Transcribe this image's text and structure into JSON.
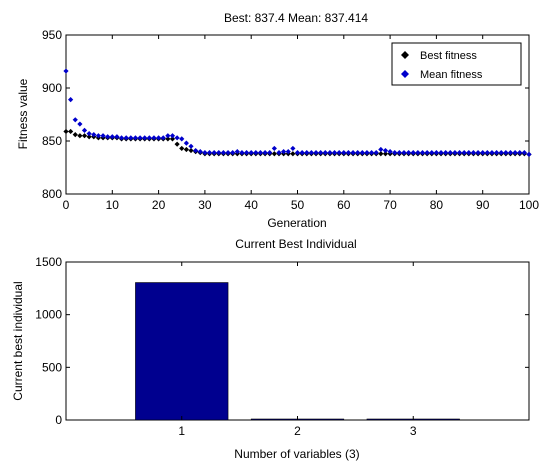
{
  "chart_data": [
    {
      "type": "scatter",
      "title": "Best: 837.4 Mean: 837.414",
      "xlabel": "Generation",
      "ylabel": "Fitness value",
      "xlim": [
        0,
        100
      ],
      "ylim": [
        800,
        950
      ],
      "xticks": [
        "0",
        "10",
        "20",
        "30",
        "40",
        "50",
        "60",
        "70",
        "80",
        "90",
        "100"
      ],
      "yticks": [
        "800",
        "850",
        "900",
        "950"
      ],
      "legend_position": "top-right",
      "grid": false,
      "series": [
        {
          "name": "Best fitness",
          "color": "#000000",
          "points": [
            [
              0,
              859
            ],
            [
              1,
              859
            ],
            [
              2,
              856
            ],
            [
              3,
              855
            ],
            [
              4,
              855
            ],
            [
              5,
              854
            ],
            [
              6,
              854
            ],
            [
              7,
              853
            ],
            [
              8,
              853
            ],
            [
              9,
              853
            ],
            [
              10,
              853
            ],
            [
              11,
              853
            ],
            [
              12,
              852
            ],
            [
              13,
              852
            ],
            [
              14,
              852
            ],
            [
              15,
              852
            ],
            [
              16,
              852
            ],
            [
              17,
              852
            ],
            [
              18,
              852
            ],
            [
              19,
              852
            ],
            [
              20,
              852
            ],
            [
              21,
              852
            ],
            [
              22,
              852
            ],
            [
              23,
              852
            ],
            [
              24,
              847
            ],
            [
              25,
              843
            ],
            [
              26,
              842
            ],
            [
              27,
              841
            ],
            [
              28,
              840
            ],
            [
              29,
              839
            ],
            [
              30,
              838
            ],
            [
              31,
              838
            ],
            [
              32,
              838
            ],
            [
              33,
              838
            ],
            [
              34,
              838
            ],
            [
              35,
              838
            ],
            [
              36,
              838
            ],
            [
              37,
              838
            ],
            [
              38,
              838
            ],
            [
              39,
              838
            ],
            [
              40,
              838
            ],
            [
              41,
              838
            ],
            [
              42,
              838
            ],
            [
              43,
              838
            ],
            [
              44,
              838
            ],
            [
              45,
              838
            ],
            [
              46,
              838
            ],
            [
              47,
              838
            ],
            [
              48,
              838
            ],
            [
              49,
              838
            ],
            [
              50,
              838
            ],
            [
              51,
              838
            ],
            [
              52,
              838
            ],
            [
              53,
              838
            ],
            [
              54,
              838
            ],
            [
              55,
              838
            ],
            [
              56,
              838
            ],
            [
              57,
              838
            ],
            [
              58,
              838
            ],
            [
              59,
              838
            ],
            [
              60,
              838
            ],
            [
              61,
              838
            ],
            [
              62,
              838
            ],
            [
              63,
              838
            ],
            [
              64,
              838
            ],
            [
              65,
              838
            ],
            [
              66,
              838
            ],
            [
              67,
              838
            ],
            [
              68,
              838
            ],
            [
              69,
              838
            ],
            [
              70,
              838
            ],
            [
              71,
              838
            ],
            [
              72,
              838
            ],
            [
              73,
              838
            ],
            [
              74,
              838
            ],
            [
              75,
              838
            ],
            [
              76,
              838
            ],
            [
              77,
              838
            ],
            [
              78,
              838
            ],
            [
              79,
              838
            ],
            [
              80,
              838
            ],
            [
              81,
              838
            ],
            [
              82,
              838
            ],
            [
              83,
              838
            ],
            [
              84,
              838
            ],
            [
              85,
              838
            ],
            [
              86,
              838
            ],
            [
              87,
              838
            ],
            [
              88,
              838
            ],
            [
              89,
              838
            ],
            [
              90,
              838
            ],
            [
              91,
              838
            ],
            [
              92,
              838
            ],
            [
              93,
              838
            ],
            [
              94,
              838
            ],
            [
              95,
              838
            ],
            [
              96,
              838
            ],
            [
              97,
              838
            ],
            [
              98,
              838
            ],
            [
              99,
              838
            ],
            [
              100,
              837.4
            ]
          ]
        },
        {
          "name": "Mean fitness",
          "color": "#0000cc",
          "points": [
            [
              0,
              916
            ],
            [
              1,
              889
            ],
            [
              2,
              870
            ],
            [
              3,
              866
            ],
            [
              4,
              860
            ],
            [
              5,
              857
            ],
            [
              6,
              856
            ],
            [
              7,
              855
            ],
            [
              8,
              855
            ],
            [
              9,
              854
            ],
            [
              10,
              854
            ],
            [
              11,
              854
            ],
            [
              12,
              853
            ],
            [
              13,
              853
            ],
            [
              14,
              853
            ],
            [
              15,
              853
            ],
            [
              16,
              853
            ],
            [
              17,
              853
            ],
            [
              18,
              853
            ],
            [
              19,
              853
            ],
            [
              20,
              853
            ],
            [
              21,
              853
            ],
            [
              22,
              855
            ],
            [
              23,
              855
            ],
            [
              24,
              853
            ],
            [
              25,
              852
            ],
            [
              26,
              848
            ],
            [
              27,
              845
            ],
            [
              28,
              841
            ],
            [
              29,
              840
            ],
            [
              30,
              839
            ],
            [
              31,
              839
            ],
            [
              32,
              839
            ],
            [
              33,
              839
            ],
            [
              34,
              839
            ],
            [
              35,
              839
            ],
            [
              36,
              839
            ],
            [
              37,
              840
            ],
            [
              38,
              839
            ],
            [
              39,
              839
            ],
            [
              40,
              839
            ],
            [
              41,
              839
            ],
            [
              42,
              839
            ],
            [
              43,
              839
            ],
            [
              44,
              839
            ],
            [
              45,
              843
            ],
            [
              46,
              839
            ],
            [
              47,
              840
            ],
            [
              48,
              840
            ],
            [
              49,
              843
            ],
            [
              50,
              839
            ],
            [
              51,
              839
            ],
            [
              52,
              839
            ],
            [
              53,
              839
            ],
            [
              54,
              839
            ],
            [
              55,
              839
            ],
            [
              56,
              839
            ],
            [
              57,
              839
            ],
            [
              58,
              839
            ],
            [
              59,
              839
            ],
            [
              60,
              839
            ],
            [
              61,
              839
            ],
            [
              62,
              839
            ],
            [
              63,
              839
            ],
            [
              64,
              839
            ],
            [
              65,
              839
            ],
            [
              66,
              839
            ],
            [
              67,
              839
            ],
            [
              68,
              842
            ],
            [
              69,
              841
            ],
            [
              70,
              840
            ],
            [
              71,
              839
            ],
            [
              72,
              839
            ],
            [
              73,
              839
            ],
            [
              74,
              839
            ],
            [
              75,
              839
            ],
            [
              76,
              839
            ],
            [
              77,
              839
            ],
            [
              78,
              839
            ],
            [
              79,
              839
            ],
            [
              80,
              839
            ],
            [
              81,
              839
            ],
            [
              82,
              839
            ],
            [
              83,
              839
            ],
            [
              84,
              839
            ],
            [
              85,
              839
            ],
            [
              86,
              839
            ],
            [
              87,
              839
            ],
            [
              88,
              839
            ],
            [
              89,
              839
            ],
            [
              90,
              839
            ],
            [
              91,
              839
            ],
            [
              92,
              839
            ],
            [
              93,
              839
            ],
            [
              94,
              839
            ],
            [
              95,
              839
            ],
            [
              96,
              839
            ],
            [
              97,
              839
            ],
            [
              98,
              839
            ],
            [
              99,
              839
            ],
            [
              100,
              837.414
            ]
          ]
        }
      ]
    },
    {
      "type": "bar",
      "title": "Current Best Individual",
      "xlabel": "Number of variables (3)",
      "ylabel": "Current best individual",
      "categories": [
        "1",
        "2",
        "3"
      ],
      "values": [
        1305,
        8,
        9
      ],
      "ylim": [
        0,
        1500
      ],
      "yticks": [
        "0",
        "500",
        "1000",
        "1500"
      ],
      "bar_color": "#00008f",
      "grid": false
    }
  ]
}
